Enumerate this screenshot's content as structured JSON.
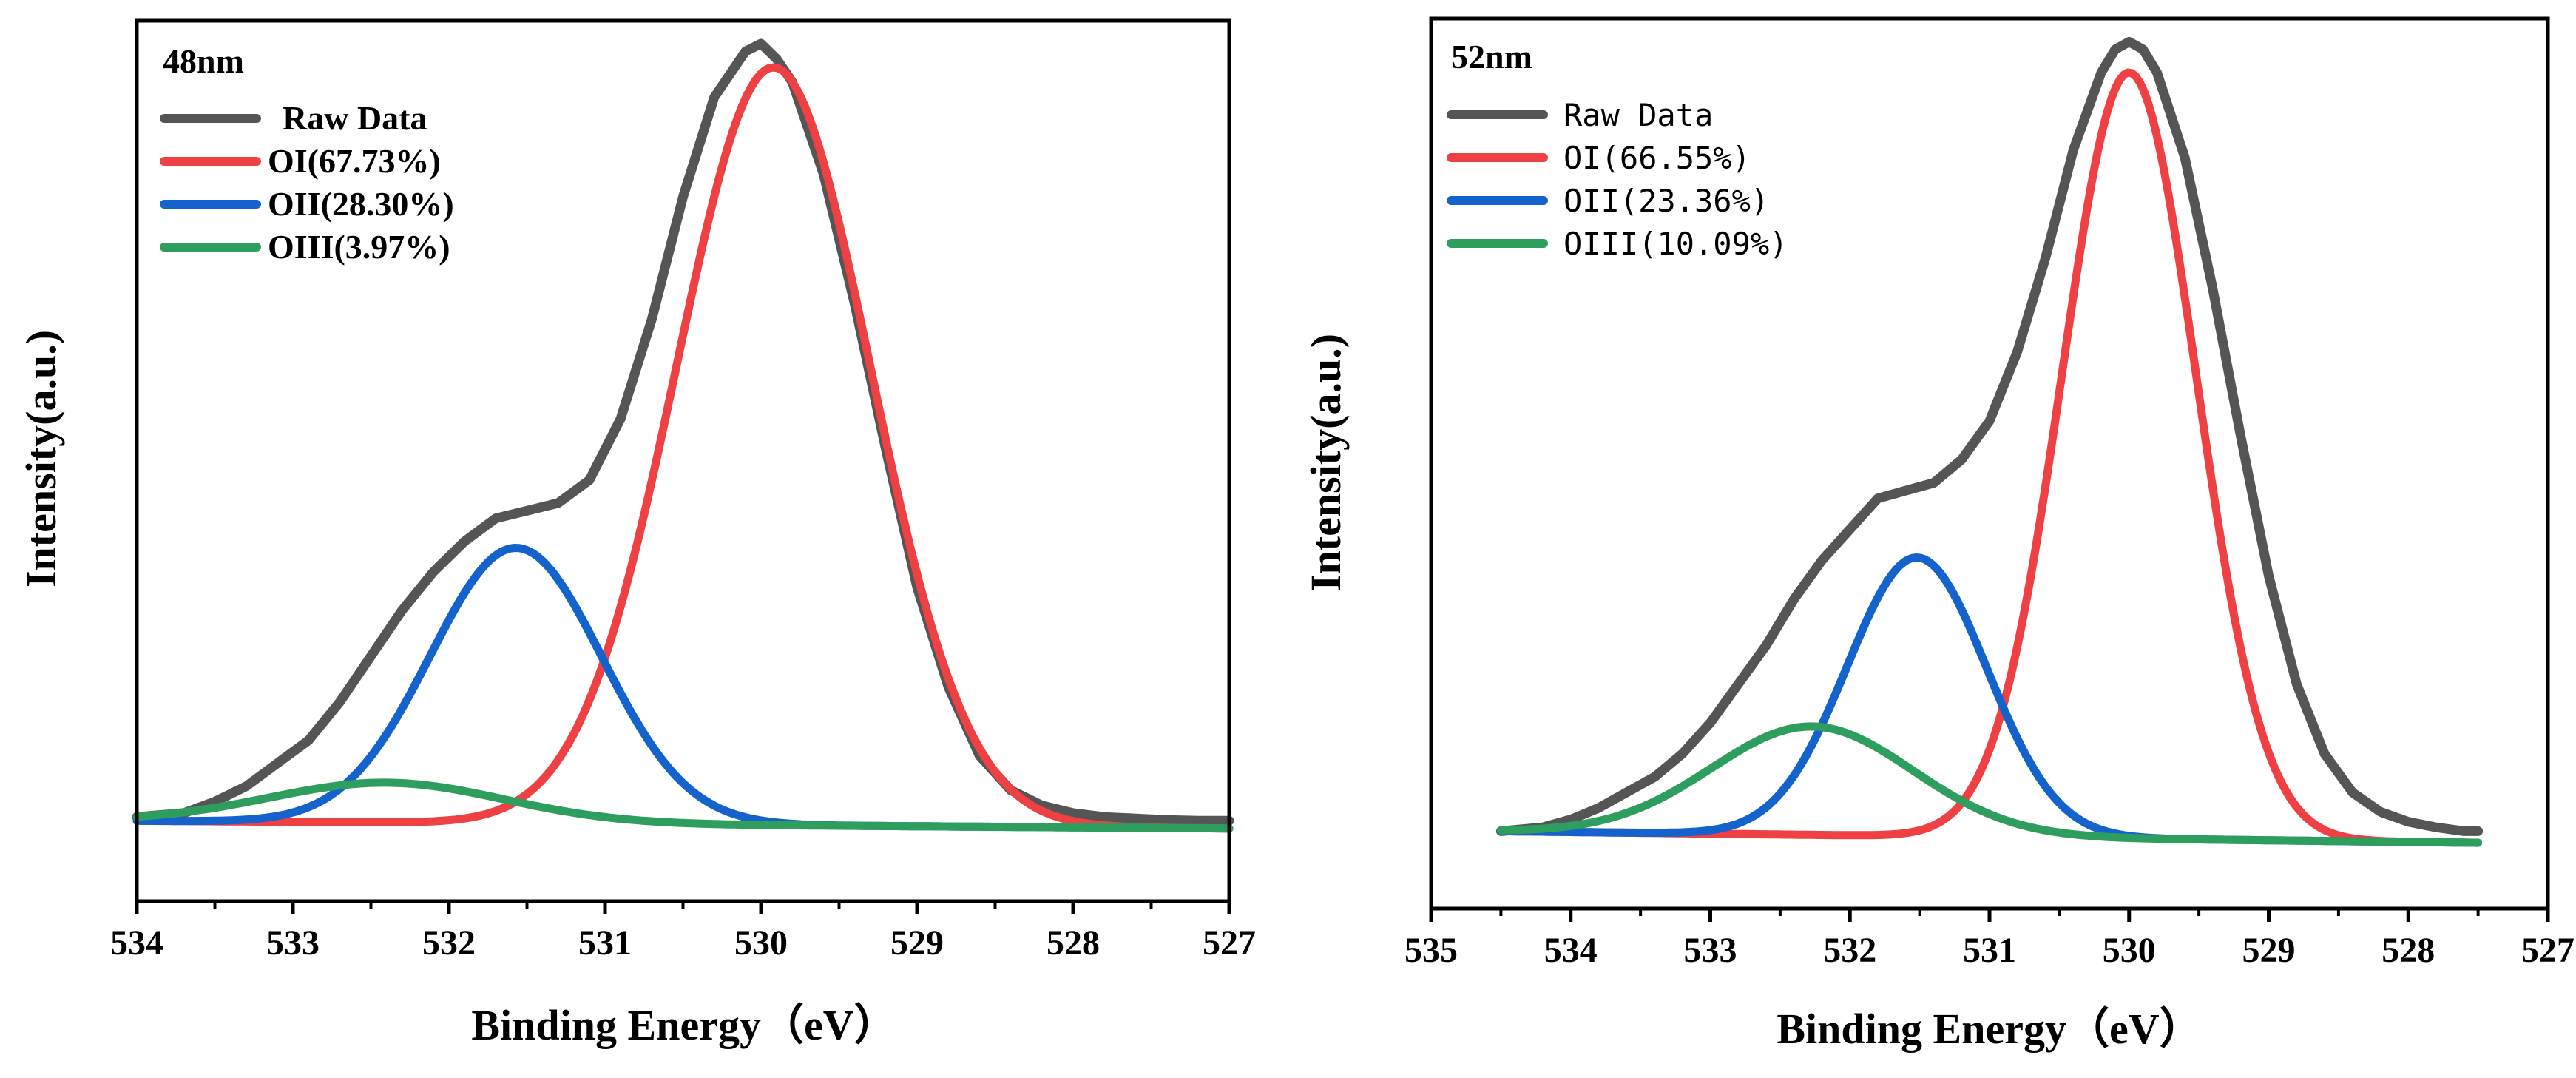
{
  "chart_data": [
    {
      "type": "line",
      "panel_label": "48nm",
      "xlabel": "Binding Energy（eV）",
      "ylabel": "Intensity(a.u.)",
      "xlim": [
        534,
        527
      ],
      "x_reversed": true,
      "ylim": [
        -0.1,
        1.05
      ],
      "y_ticks_shown": false,
      "x_ticks": [
        "534",
        "533",
        "532",
        "531",
        "530",
        "529",
        "528",
        "527"
      ],
      "legend_position": "top-left",
      "legend_style": "bold-serif",
      "series": [
        {
          "name": "Raw Data",
          "color": "#555555",
          "x": [
            534.0,
            533.7,
            533.5,
            533.3,
            533.1,
            532.9,
            532.7,
            532.5,
            532.3,
            532.1,
            531.9,
            531.7,
            531.5,
            531.3,
            531.1,
            530.9,
            530.7,
            530.5,
            530.3,
            530.1,
            530.0,
            529.9,
            529.8,
            529.6,
            529.4,
            529.2,
            529.0,
            528.8,
            528.6,
            528.4,
            528.2,
            528.0,
            527.8,
            527.6,
            527.4,
            527.2,
            527.0
          ],
          "y": [
            0.01,
            0.015,
            0.03,
            0.05,
            0.08,
            0.11,
            0.16,
            0.22,
            0.28,
            0.33,
            0.37,
            0.4,
            0.41,
            0.42,
            0.45,
            0.53,
            0.66,
            0.82,
            0.95,
            1.01,
            1.02,
            1.0,
            0.97,
            0.85,
            0.68,
            0.49,
            0.31,
            0.18,
            0.09,
            0.045,
            0.025,
            0.015,
            0.01,
            0.008,
            0.006,
            0.005,
            0.005
          ]
        },
        {
          "name": "OI(67.73%)",
          "color": "#ef4044",
          "model": "gaussian",
          "center": 529.92,
          "height": 0.99,
          "sigma": 0.62,
          "baseline_start": 0.005,
          "baseline_end": -0.005
        },
        {
          "name": "OII(28.30%)",
          "color": "#1462cc",
          "model": "gaussian",
          "center": 531.57,
          "height": 0.36,
          "sigma": 0.55,
          "baseline_start": 0.005,
          "baseline_end": -0.005
        },
        {
          "name": "OIII(3.97%)",
          "color": "#2e9e5e",
          "model": "gaussian",
          "center": 532.4,
          "height": 0.052,
          "sigma": 0.75,
          "baseline_start": 0.005,
          "baseline_end": -0.005
        }
      ]
    },
    {
      "type": "line",
      "panel_label": "52nm",
      "xlabel": "Binding Energy（eV）",
      "ylabel": "Intensity(a.u.)",
      "xlim": [
        535,
        527
      ],
      "x_reversed": true,
      "ylim": [
        -0.1,
        1.05
      ],
      "y_ticks_shown": false,
      "x_ticks": [
        "535",
        "534",
        "533",
        "532",
        "531",
        "530",
        "529",
        "528",
        "527"
      ],
      "legend_position": "top-left",
      "legend_style": "monospace",
      "series": [
        {
          "name": "Raw Data",
          "color": "#555555",
          "x": [
            534.5,
            534.2,
            534.0,
            533.8,
            533.6,
            533.4,
            533.2,
            533.0,
            532.8,
            532.6,
            532.4,
            532.2,
            532.0,
            531.8,
            531.6,
            531.4,
            531.2,
            531.0,
            530.8,
            530.6,
            530.4,
            530.2,
            530.1,
            530.0,
            529.9,
            529.8,
            529.6,
            529.4,
            529.2,
            529.0,
            528.8,
            528.6,
            528.4,
            528.2,
            528.0,
            527.8,
            527.6,
            527.5
          ],
          "y": [
            0.0,
            0.005,
            0.015,
            0.03,
            0.05,
            0.07,
            0.1,
            0.14,
            0.19,
            0.24,
            0.3,
            0.35,
            0.39,
            0.43,
            0.44,
            0.45,
            0.48,
            0.53,
            0.62,
            0.74,
            0.88,
            0.98,
            1.01,
            1.02,
            1.01,
            0.98,
            0.87,
            0.7,
            0.51,
            0.33,
            0.19,
            0.1,
            0.05,
            0.025,
            0.012,
            0.005,
            0.0,
            0.0
          ]
        },
        {
          "name": "OI(66.55%)",
          "color": "#ef4044",
          "model": "gaussian",
          "center": 530.0,
          "height": 0.99,
          "sigma": 0.48,
          "baseline_start": 0.0,
          "baseline_end": -0.015
        },
        {
          "name": "OII(23.36%)",
          "color": "#1462cc",
          "model": "gaussian",
          "center": 531.52,
          "height": 0.36,
          "sigma": 0.5,
          "baseline_start": 0.0,
          "baseline_end": -0.015
        },
        {
          "name": "OIII(10.09%)",
          "color": "#2e9e5e",
          "model": "gaussian",
          "center": 532.27,
          "height": 0.14,
          "sigma": 0.72,
          "baseline_start": 0.0,
          "baseline_end": -0.015
        }
      ]
    }
  ]
}
